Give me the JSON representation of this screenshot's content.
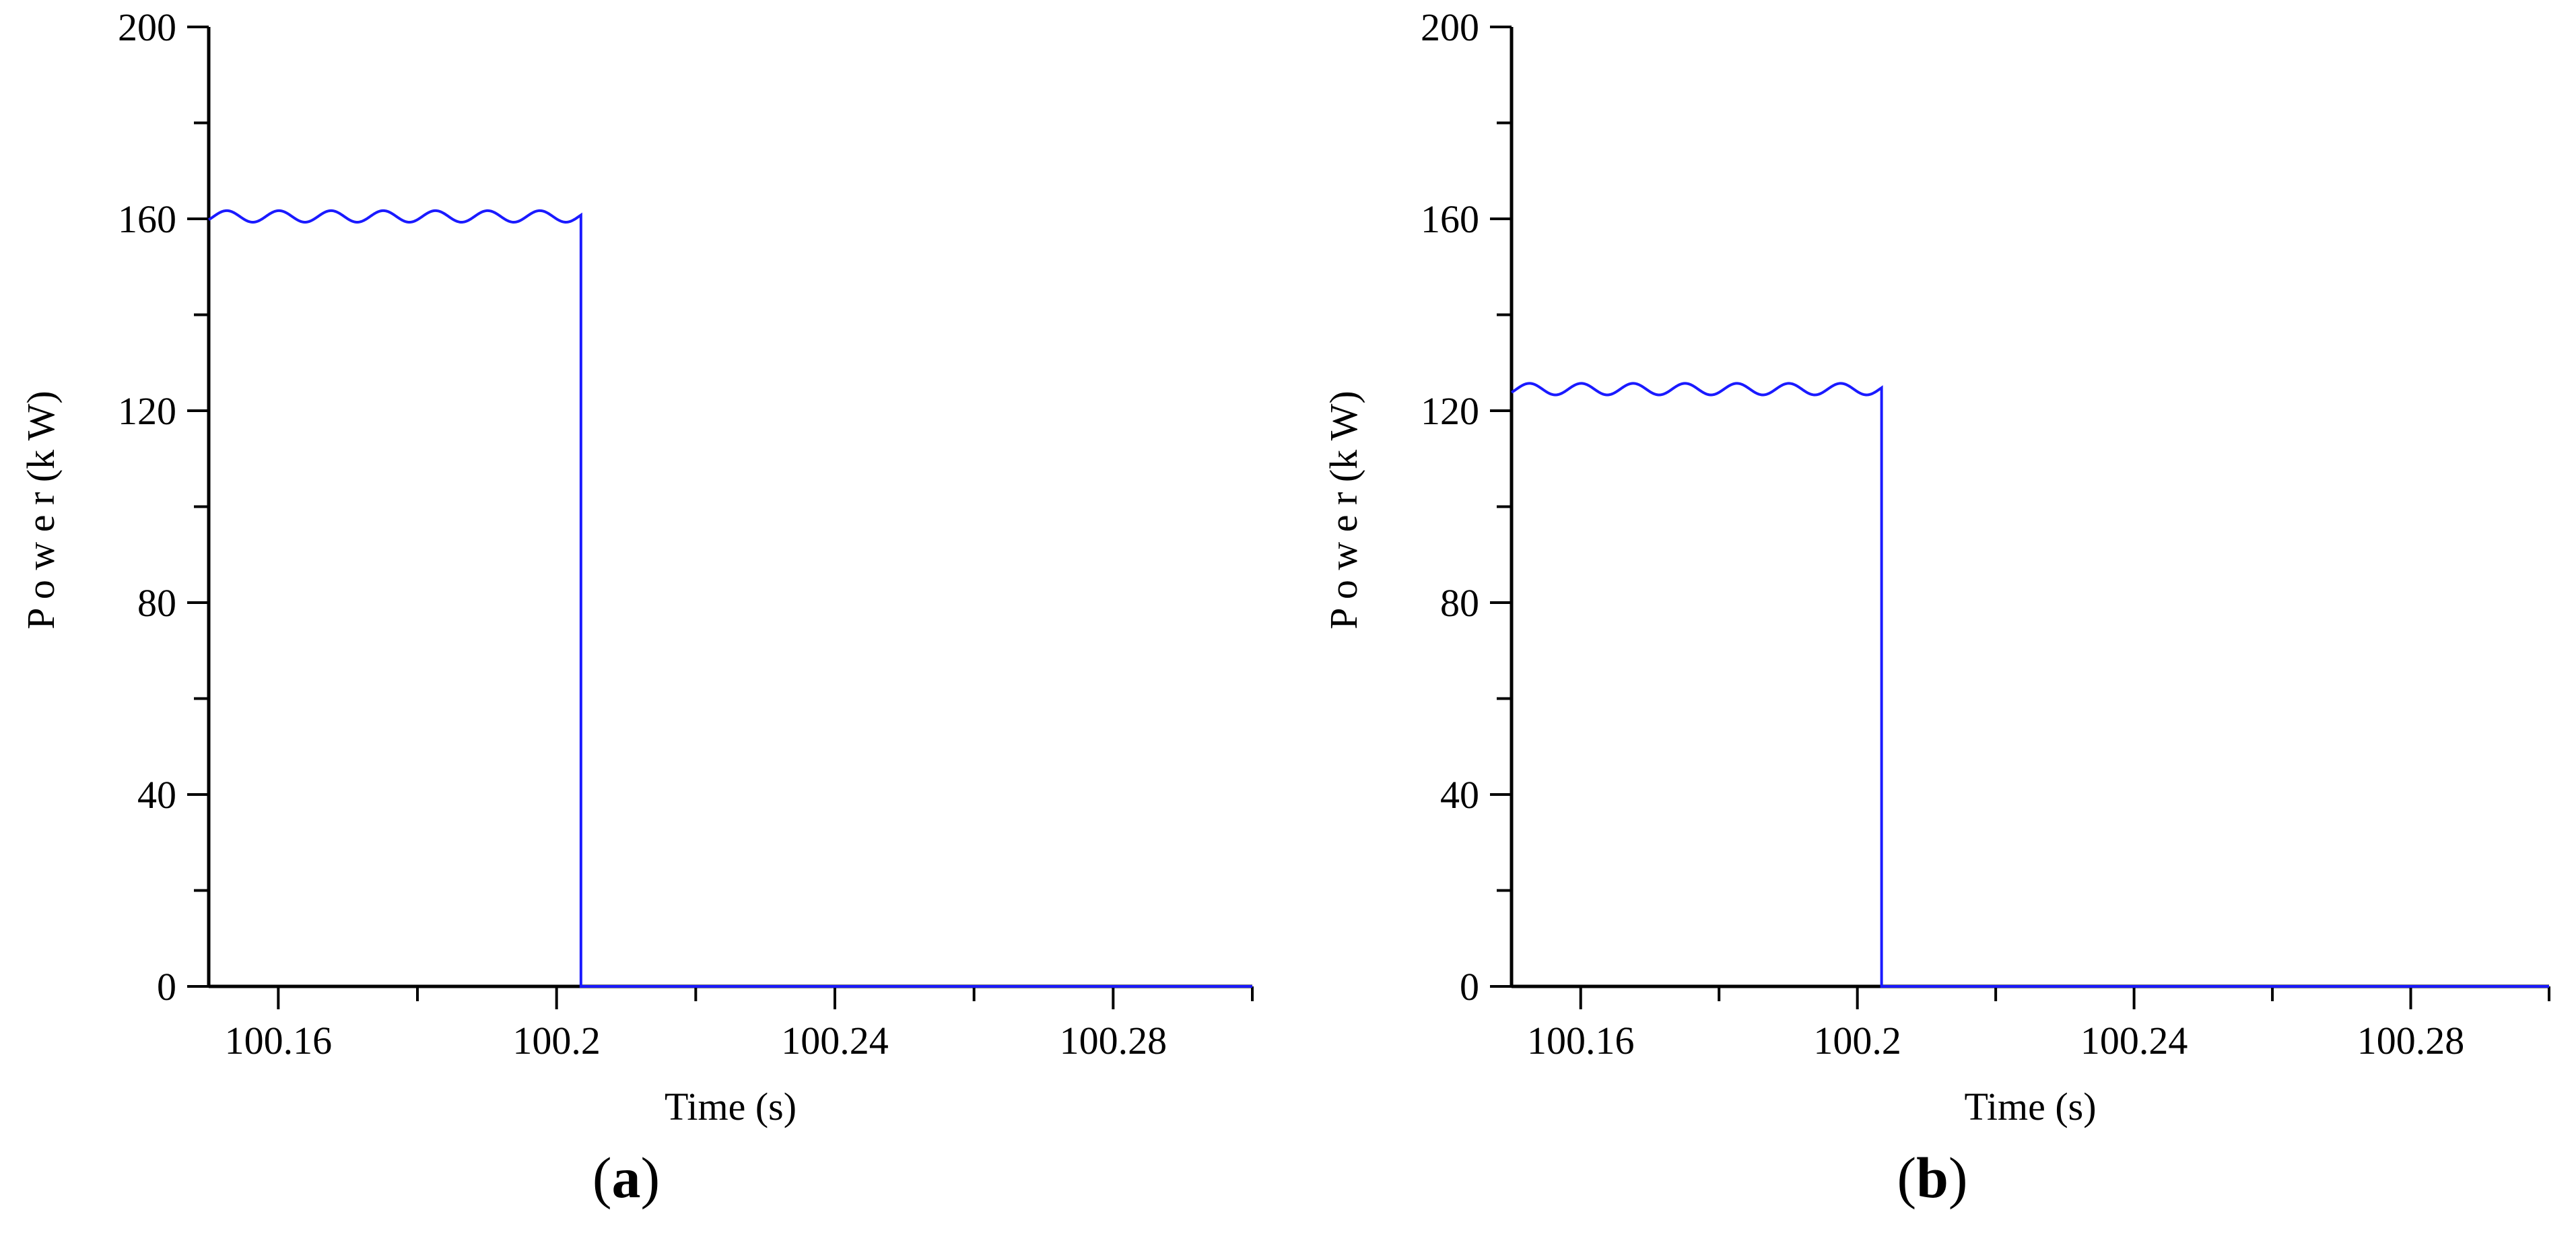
{
  "chart_data": [
    {
      "type": "line",
      "panel_label": "a",
      "xlabel": "Time  (s)",
      "ylabel": "P o w e r  (k W)",
      "xlim": [
        100.15,
        100.3
      ],
      "ylim": [
        0,
        200
      ],
      "x_ticks": [
        100.16,
        100.2,
        100.24,
        100.28
      ],
      "x_tick_labels": [
        "100.16",
        "100.2",
        "100.24",
        "100.28"
      ],
      "y_ticks": [
        0,
        40,
        80,
        120,
        160,
        200
      ],
      "y_tick_labels": [
        "0",
        "40",
        "80",
        "120",
        "160",
        "200"
      ],
      "grid": false,
      "color": "#1a1aff",
      "series": [
        {
          "step_time": 100.2035,
          "level_before": 160.5,
          "ripple_amplitude": 1.2,
          "ripple_period": 0.0075,
          "level_after": 0
        }
      ]
    },
    {
      "type": "line",
      "panel_label": "b",
      "xlabel": "Time  (s)",
      "ylabel": "P o w e r  (k W)",
      "xlim": [
        100.15,
        100.3
      ],
      "ylim": [
        0,
        200
      ],
      "x_ticks": [
        100.16,
        100.2,
        100.24,
        100.28
      ],
      "x_tick_labels": [
        "100.16",
        "100.2",
        "100.24",
        "100.28"
      ],
      "y_ticks": [
        0,
        40,
        80,
        120,
        160,
        200
      ],
      "y_tick_labels": [
        "0",
        "40",
        "80",
        "120",
        "160",
        "200"
      ],
      "grid": false,
      "color": "#1a1aff",
      "series": [
        {
          "step_time": 100.2035,
          "level_before": 124.5,
          "ripple_amplitude": 1.2,
          "ripple_period": 0.0075,
          "level_after": 0
        }
      ]
    }
  ]
}
